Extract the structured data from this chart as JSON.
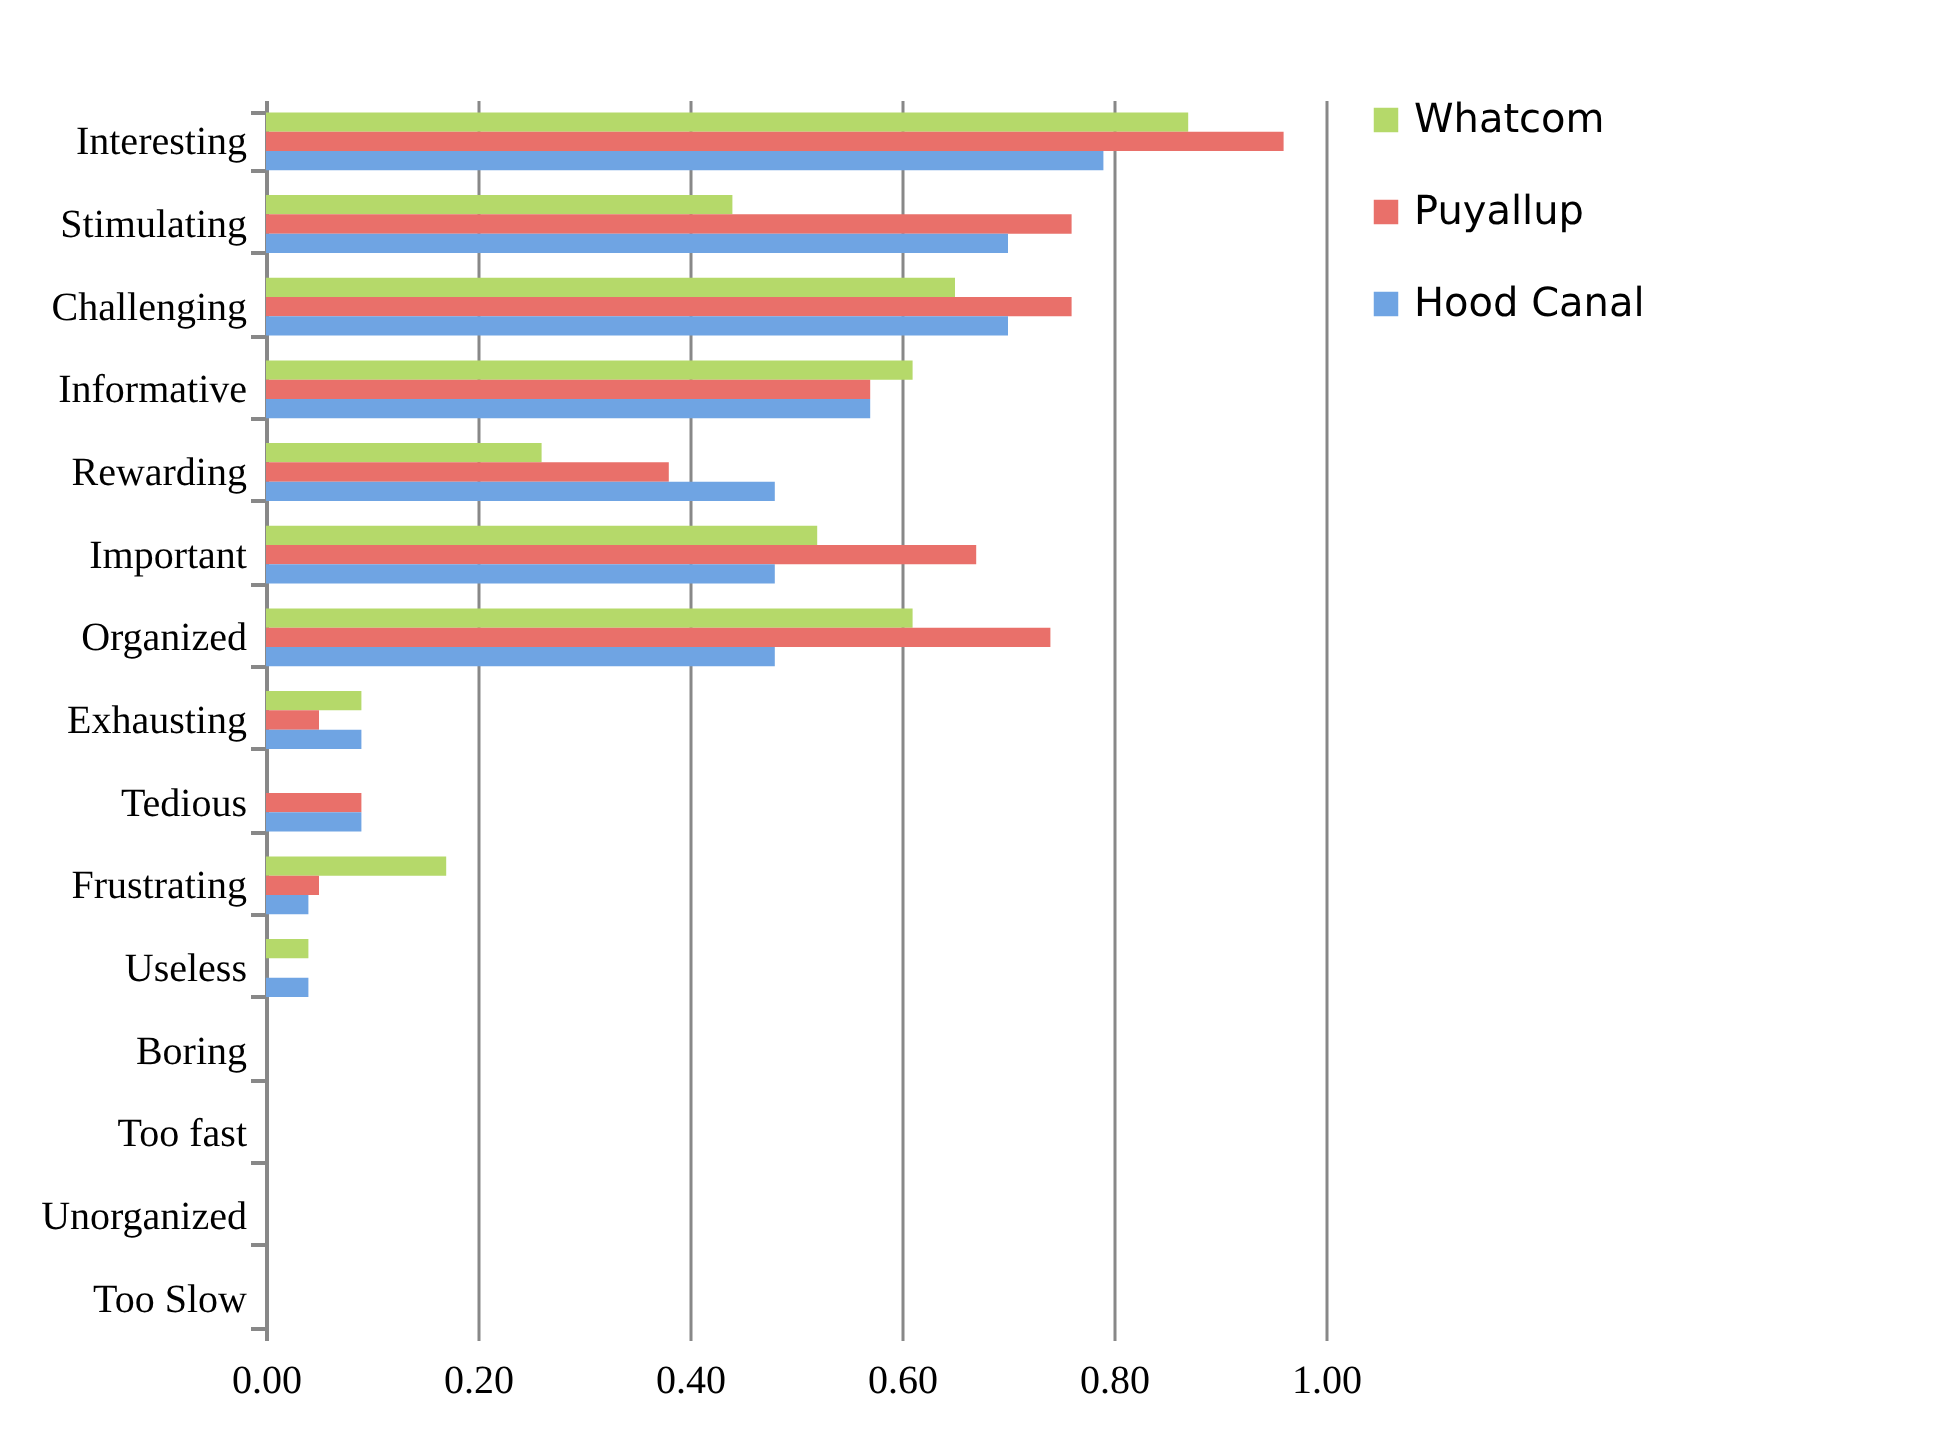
{
  "chart_data": {
    "type": "bar",
    "orientation": "horizontal",
    "categories": [
      "Interesting",
      "Stimulating",
      "Challenging",
      "Informative",
      "Rewarding",
      "Important",
      "Organized",
      "Exhausting",
      "Tedious",
      "Frustrating",
      "Useless",
      "Boring",
      "Too fast",
      "Unorganized",
      "Too Slow"
    ],
    "series": [
      {
        "name": "Whatcom",
        "color": "#b5d96a",
        "values": [
          0.87,
          0.44,
          0.65,
          0.61,
          0.26,
          0.52,
          0.61,
          0.09,
          0,
          0.17,
          0.04,
          0,
          0,
          0,
          0
        ]
      },
      {
        "name": "Puyallup",
        "color": "#e9706a",
        "values": [
          0.96,
          0.76,
          0.76,
          0.57,
          0.38,
          0.67,
          0.74,
          0.05,
          0.09,
          0.05,
          0,
          0,
          0,
          0,
          0
        ]
      },
      {
        "name": "Hood Canal",
        "color": "#6fa4e3",
        "values": [
          0.79,
          0.7,
          0.7,
          0.57,
          0.48,
          0.48,
          0.48,
          0.09,
          0.09,
          0.04,
          0.04,
          0,
          0,
          0,
          0
        ]
      }
    ],
    "xlim": [
      0,
      1
    ],
    "xticks": [
      {
        "value": 0,
        "label": "0.00"
      },
      {
        "value": 0.2,
        "label": "0.20"
      },
      {
        "value": 0.4,
        "label": "0.40"
      },
      {
        "value": 0.6,
        "label": "0.60"
      },
      {
        "value": 0.8,
        "label": "0.80"
      },
      {
        "value": 1,
        "label": "1.00"
      }
    ],
    "grid": "x",
    "legend": "right"
  }
}
